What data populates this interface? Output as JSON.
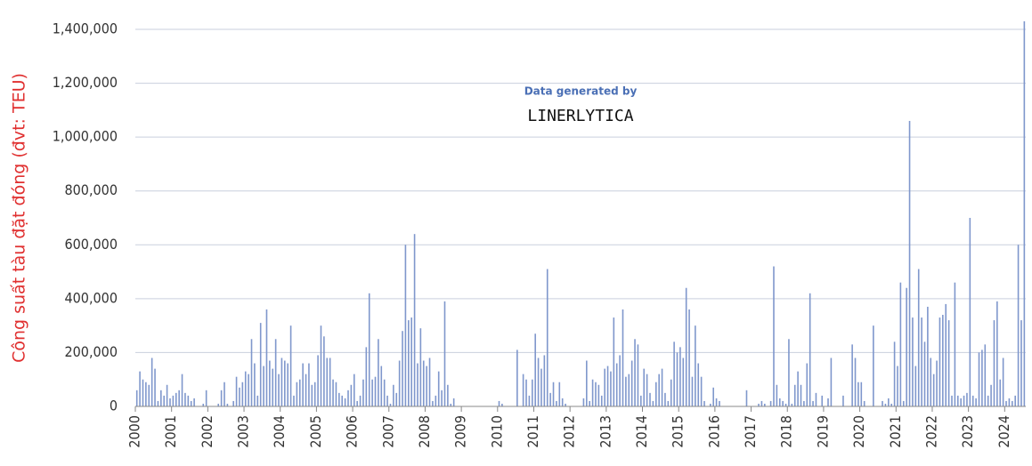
{
  "chart_data": {
    "type": "bar",
    "ylabel": "Công suất tàu đặt đóng (đvt: TEU)",
    "annotations": [
      "Data generated by",
      "LINERLYTICA"
    ],
    "color": "#7f97cc",
    "grid": true,
    "ylim": [
      0,
      1400000
    ],
    "yticks": [
      0,
      {
        "value": 200000,
        "label": "200,000"
      },
      {
        "value": 400000,
        "label": "400,000"
      },
      {
        "value": 600000,
        "label": "600,000"
      },
      {
        "value": 800000,
        "label": "800,000"
      },
      {
        "value": 1000000,
        "label": "1,000,000"
      },
      {
        "value": 1200000,
        "label": "1,200,000"
      },
      {
        "value": 1400000,
        "label": "1,400,000"
      }
    ],
    "categories": [
      "2000",
      null,
      null,
      null,
      null,
      null,
      null,
      null,
      null,
      null,
      null,
      null,
      "2001",
      null,
      null,
      null,
      null,
      null,
      null,
      null,
      null,
      null,
      null,
      null,
      "2002",
      null,
      null,
      null,
      null,
      null,
      null,
      null,
      null,
      null,
      null,
      null,
      "2003",
      null,
      null,
      null,
      null,
      null,
      null,
      null,
      null,
      null,
      null,
      null,
      "2004",
      null,
      null,
      null,
      null,
      null,
      null,
      null,
      null,
      null,
      null,
      null,
      "2005",
      null,
      null,
      null,
      null,
      null,
      null,
      null,
      null,
      null,
      null,
      null,
      "2006",
      null,
      null,
      null,
      null,
      null,
      null,
      null,
      null,
      null,
      null,
      null,
      "2007",
      null,
      null,
      null,
      null,
      null,
      null,
      null,
      null,
      null,
      null,
      null,
      "2008",
      null,
      null,
      null,
      null,
      null,
      null,
      null,
      null,
      null,
      null,
      null,
      "2009",
      null,
      null,
      null,
      null,
      null,
      null,
      null,
      null,
      null,
      null,
      null,
      "2010",
      null,
      null,
      null,
      null,
      null,
      null,
      null,
      null,
      null,
      null,
      null,
      "2011",
      null,
      null,
      null,
      null,
      null,
      null,
      null,
      null,
      null,
      null,
      null,
      "2012",
      null,
      null,
      null,
      null,
      null,
      null,
      null,
      null,
      null,
      null,
      null,
      "2013",
      null,
      null,
      null,
      null,
      null,
      null,
      null,
      null,
      null,
      null,
      null,
      "2014",
      null,
      null,
      null,
      null,
      null,
      null,
      null,
      null,
      null,
      null,
      null,
      "2015",
      null,
      null,
      null,
      null,
      null,
      null,
      null,
      null,
      null,
      null,
      null,
      "2016",
      null,
      null,
      null,
      null,
      null,
      null,
      null,
      null,
      null,
      null,
      null,
      "2017",
      null,
      null,
      null,
      null,
      null,
      null,
      null,
      null,
      null,
      null,
      null,
      "2018",
      null,
      null,
      null,
      null,
      null,
      null,
      null,
      null,
      null,
      null,
      null,
      "2019",
      null,
      null,
      null,
      null,
      null,
      null,
      null,
      null,
      null,
      null,
      null,
      "2020",
      null,
      null,
      null,
      null,
      null,
      null,
      null,
      null,
      null,
      null,
      null,
      "2021",
      null,
      null,
      null,
      null,
      null,
      null,
      null,
      null,
      null,
      null,
      null,
      "2022",
      null,
      null,
      null,
      null,
      null,
      null,
      null,
      null,
      null,
      null,
      null,
      "2023",
      null,
      null,
      null,
      null,
      null,
      null,
      null,
      null,
      null,
      null,
      null,
      "2024",
      null,
      null,
      null,
      null,
      null,
      null
    ],
    "values": [
      60000,
      130000,
      100000,
      90000,
      80000,
      180000,
      140000,
      20000,
      60000,
      40000,
      80000,
      30000,
      40000,
      50000,
      60000,
      120000,
      50000,
      40000,
      20000,
      30000,
      0,
      0,
      10000,
      60000,
      0,
      0,
      0,
      10000,
      60000,
      90000,
      10000,
      0,
      20000,
      110000,
      70000,
      90000,
      130000,
      120000,
      250000,
      160000,
      40000,
      310000,
      150000,
      360000,
      170000,
      140000,
      250000,
      120000,
      180000,
      170000,
      160000,
      300000,
      40000,
      90000,
      100000,
      160000,
      120000,
      160000,
      80000,
      90000,
      190000,
      300000,
      260000,
      180000,
      180000,
      100000,
      90000,
      50000,
      40000,
      30000,
      60000,
      80000,
      120000,
      20000,
      40000,
      100000,
      220000,
      420000,
      100000,
      110000,
      250000,
      150000,
      100000,
      40000,
      10000,
      80000,
      50000,
      170000,
      280000,
      600000,
      320000,
      330000,
      640000,
      160000,
      290000,
      170000,
      150000,
      180000,
      20000,
      40000,
      130000,
      60000,
      390000,
      80000,
      10000,
      30000,
      0,
      0,
      0,
      0,
      0,
      0,
      0,
      0,
      0,
      0,
      0,
      0,
      0,
      0,
      20000,
      10000,
      0,
      0,
      0,
      0,
      210000,
      0,
      120000,
      100000,
      40000,
      100000,
      270000,
      180000,
      140000,
      190000,
      510000,
      50000,
      90000,
      20000,
      90000,
      30000,
      10000,
      0,
      0,
      0,
      0,
      0,
      30000,
      170000,
      20000,
      100000,
      90000,
      80000,
      40000,
      140000,
      150000,
      130000,
      330000,
      160000,
      190000,
      360000,
      110000,
      120000,
      170000,
      250000,
      230000,
      40000,
      140000,
      120000,
      50000,
      20000,
      90000,
      120000,
      140000,
      50000,
      20000,
      100000,
      240000,
      200000,
      220000,
      180000,
      440000,
      360000,
      110000,
      300000,
      160000,
      110000,
      20000,
      0,
      10000,
      70000,
      30000,
      20000,
      0,
      0,
      0,
      0,
      0,
      0,
      0,
      0,
      60000,
      0,
      0,
      0,
      10000,
      20000,
      10000,
      0,
      20000,
      520000,
      80000,
      30000,
      20000,
      10000,
      250000,
      10000,
      80000,
      130000,
      80000,
      20000,
      160000,
      420000,
      20000,
      50000,
      0,
      40000,
      0,
      30000,
      180000,
      0,
      0,
      0,
      40000,
      0,
      0,
      230000,
      180000,
      90000,
      90000,
      20000,
      0,
      0,
      300000,
      0,
      0,
      20000,
      10000,
      30000,
      10000,
      240000,
      150000,
      460000,
      20000,
      440000,
      1060000,
      330000,
      150000,
      510000,
      330000,
      240000,
      370000,
      180000,
      120000,
      170000,
      330000,
      340000,
      380000,
      320000,
      40000,
      460000,
      40000,
      30000,
      40000,
      50000,
      700000,
      40000,
      30000,
      200000,
      210000,
      230000,
      40000,
      80000,
      320000,
      390000,
      100000,
      180000,
      20000,
      30000,
      20000,
      40000,
      600000,
      320000,
      1430000
    ]
  }
}
